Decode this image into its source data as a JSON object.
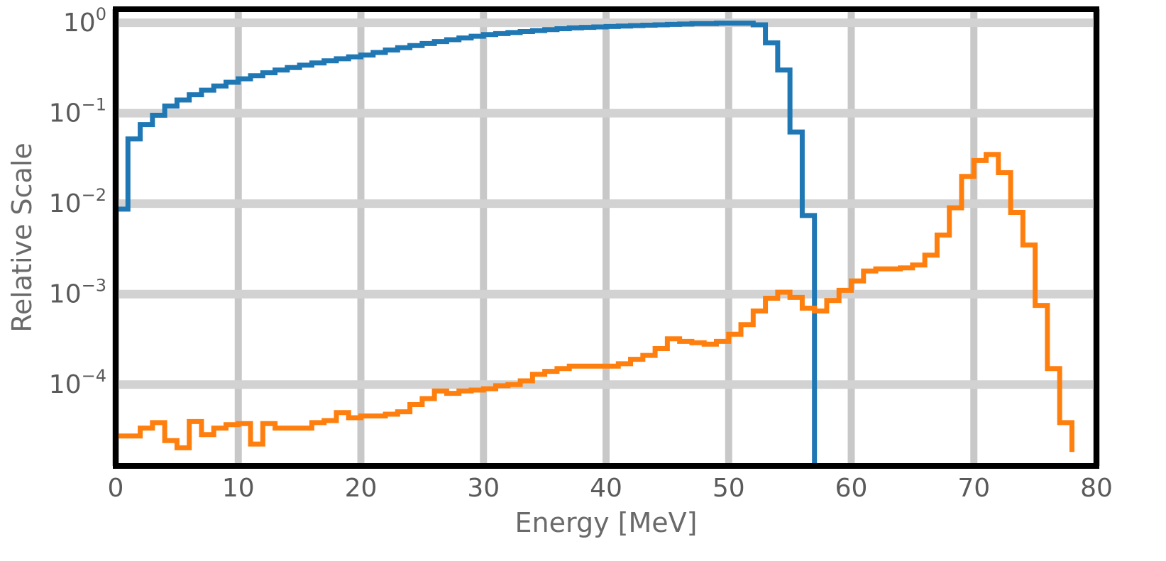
{
  "chart_data": {
    "type": "line",
    "xlabel": "Energy [MeV]",
    "ylabel": "Relative Scale",
    "xlim": [
      0,
      80
    ],
    "ylim_log10": [
      -4.9,
      0.15
    ],
    "y_scale": "log",
    "grid": true,
    "x_ticks": [
      {
        "value": 0,
        "label": "0"
      },
      {
        "value": 10,
        "label": "10"
      },
      {
        "value": 20,
        "label": "20"
      },
      {
        "value": 30,
        "label": "30"
      },
      {
        "value": 40,
        "label": "40"
      },
      {
        "value": 50,
        "label": "50"
      },
      {
        "value": 60,
        "label": "60"
      },
      {
        "value": 70,
        "label": "70"
      },
      {
        "value": 80,
        "label": "80"
      }
    ],
    "y_ticks": [
      {
        "value": 1,
        "base": "10",
        "exp": "0"
      },
      {
        "value": 0.1,
        "base": "10",
        "exp": "−1"
      },
      {
        "value": 0.01,
        "base": "10",
        "exp": "−2"
      },
      {
        "value": 0.001,
        "base": "10",
        "exp": "−3"
      },
      {
        "value": 0.0001,
        "base": "10",
        "exp": "−4"
      }
    ],
    "series": [
      {
        "color": "#1f77b4",
        "step": true,
        "x": [
          0,
          1,
          2,
          3,
          4,
          5,
          6,
          7,
          8,
          9,
          10,
          11,
          12,
          13,
          14,
          15,
          16,
          17,
          18,
          19,
          20,
          21,
          22,
          23,
          24,
          25,
          26,
          27,
          28,
          29,
          30,
          31,
          32,
          33,
          34,
          35,
          36,
          37,
          38,
          39,
          40,
          41,
          42,
          43,
          44,
          45,
          46,
          47,
          48,
          49,
          50,
          51,
          52,
          53,
          54,
          55,
          56,
          57
        ],
        "y": [
          0.0087,
          0.052,
          0.075,
          0.095,
          0.12,
          0.14,
          0.16,
          0.18,
          0.2,
          0.22,
          0.24,
          0.26,
          0.28,
          0.3,
          0.32,
          0.34,
          0.36,
          0.38,
          0.4,
          0.42,
          0.44,
          0.47,
          0.5,
          0.53,
          0.56,
          0.59,
          0.62,
          0.65,
          0.68,
          0.71,
          0.74,
          0.76,
          0.78,
          0.8,
          0.82,
          0.84,
          0.86,
          0.88,
          0.89,
          0.9,
          0.91,
          0.92,
          0.93,
          0.94,
          0.95,
          0.96,
          0.97,
          0.98,
          0.98,
          0.99,
          0.99,
          0.99,
          0.95,
          0.6,
          0.3,
          0.062,
          0.0074,
          1e-05
        ]
      },
      {
        "color": "#ff7f0e",
        "step": true,
        "x": [
          0,
          1,
          2,
          3,
          4,
          5,
          6,
          7,
          8,
          9,
          10,
          11,
          12,
          13,
          14,
          15,
          16,
          17,
          18,
          19,
          20,
          21,
          22,
          23,
          24,
          25,
          26,
          27,
          28,
          29,
          30,
          31,
          32,
          33,
          34,
          35,
          36,
          37,
          38,
          39,
          40,
          41,
          42,
          43,
          44,
          45,
          46,
          47,
          48,
          49,
          50,
          51,
          52,
          53,
          54,
          55,
          56,
          57,
          58,
          59,
          60,
          61,
          62,
          63,
          64,
          65,
          66,
          67,
          68,
          69,
          70,
          71,
          72,
          73,
          74,
          75,
          76,
          77,
          78
        ],
        "y": [
          2.7e-05,
          2.7e-05,
          3.3e-05,
          3.8e-05,
          2.4e-05,
          2e-05,
          3.9e-05,
          2.8e-05,
          3.3e-05,
          3.6e-05,
          3.7e-05,
          2.2e-05,
          3.7e-05,
          3.3e-05,
          3.3e-05,
          3.3e-05,
          3.8e-05,
          4e-05,
          4.9e-05,
          4.3e-05,
          4.5e-05,
          4.5e-05,
          4.7e-05,
          5e-05,
          6e-05,
          7e-05,
          8.5e-05,
          8e-05,
          8.5e-05,
          8.7e-05,
          9e-05,
          9.7e-05,
          0.0001,
          0.00011,
          0.00013,
          0.00014,
          0.00015,
          0.00016,
          0.00016,
          0.00016,
          0.00016,
          0.00017,
          0.00019,
          0.00021,
          0.00025,
          0.00032,
          0.0003,
          0.00029,
          0.00028,
          0.0003,
          0.00036,
          0.00046,
          0.00065,
          0.0009,
          0.00105,
          0.00092,
          0.0007,
          0.00065,
          0.00085,
          0.0011,
          0.0014,
          0.0018,
          0.0019,
          0.0019,
          0.00195,
          0.0021,
          0.0027,
          0.0045,
          0.009,
          0.02,
          0.03,
          0.035,
          0.022,
          0.008,
          0.0035,
          0.00075,
          0.00015,
          3.8e-05,
          1.8e-05
        ]
      }
    ]
  }
}
